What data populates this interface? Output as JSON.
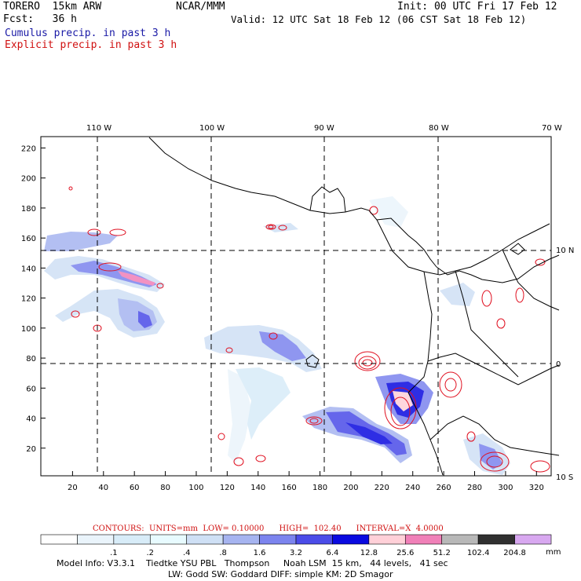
{
  "header": {
    "model": "TORERO  15km ARW",
    "org": "NCAR/MMM",
    "init": "Init: 00 UTC Fri 17 Feb 12",
    "fcst": "Fcst:   36 h",
    "valid": "Valid: 12 UTC Sat 18 Feb 12 (06 CST Sat 18 Feb 12)",
    "field1": "Cumulus precip. in past 3 h",
    "field2": "Explicit precip. in past 3 h"
  },
  "colors": {
    "field1": "#1a1aa6",
    "field2": "#d01010",
    "grid": "#000000",
    "coast": "#000000",
    "contour": "#e01020"
  },
  "map": {
    "top_lon_labels": [
      "110 W",
      "100 W",
      "90 W",
      "80 W",
      "70 W"
    ],
    "right_lat_labels": [
      "10 N",
      "0",
      "10 S"
    ],
    "x_ticks": [
      "20",
      "40",
      "60",
      "80",
      "100",
      "120",
      "140",
      "160",
      "180",
      "200",
      "220",
      "240",
      "260",
      "280",
      "300",
      "320"
    ],
    "y_ticks": [
      "20",
      "40",
      "60",
      "80",
      "100",
      "120",
      "140",
      "160",
      "180",
      "200",
      "220"
    ]
  },
  "colorbar": {
    "contour_line": "CONTOURS:  UNITS=mm  LOW= 0.10000      HIGH=  102.40      INTERVAL=X  4.0000",
    "labels": [
      ".1",
      ".2",
      ".4",
      ".8",
      "1.6",
      "3.2",
      "6.4",
      "12.8",
      "25.6",
      "51.2",
      "102.4",
      "204.8"
    ],
    "unit": "mm",
    "colors": [
      "#ffffff",
      "#eaf4fb",
      "#d8ecf8",
      "#e8fbff",
      "#cfe0f5",
      "#a6b4f0",
      "#7c84ee",
      "#4b4ce8",
      "#0a0ae0",
      "#ffd0d8",
      "#f080b8",
      "#b8b8b8",
      "#303030",
      "#d8a8f0"
    ]
  },
  "footer": {
    "line1": "Model Info: V3.3.1    Tiedtke YSU PBL   Thompson     Noah LSM  15 km,   44 levels,   41 sec",
    "line2": "LW: Godd SW: Goddard DIFF: simple KM: 2D Smagor"
  }
}
